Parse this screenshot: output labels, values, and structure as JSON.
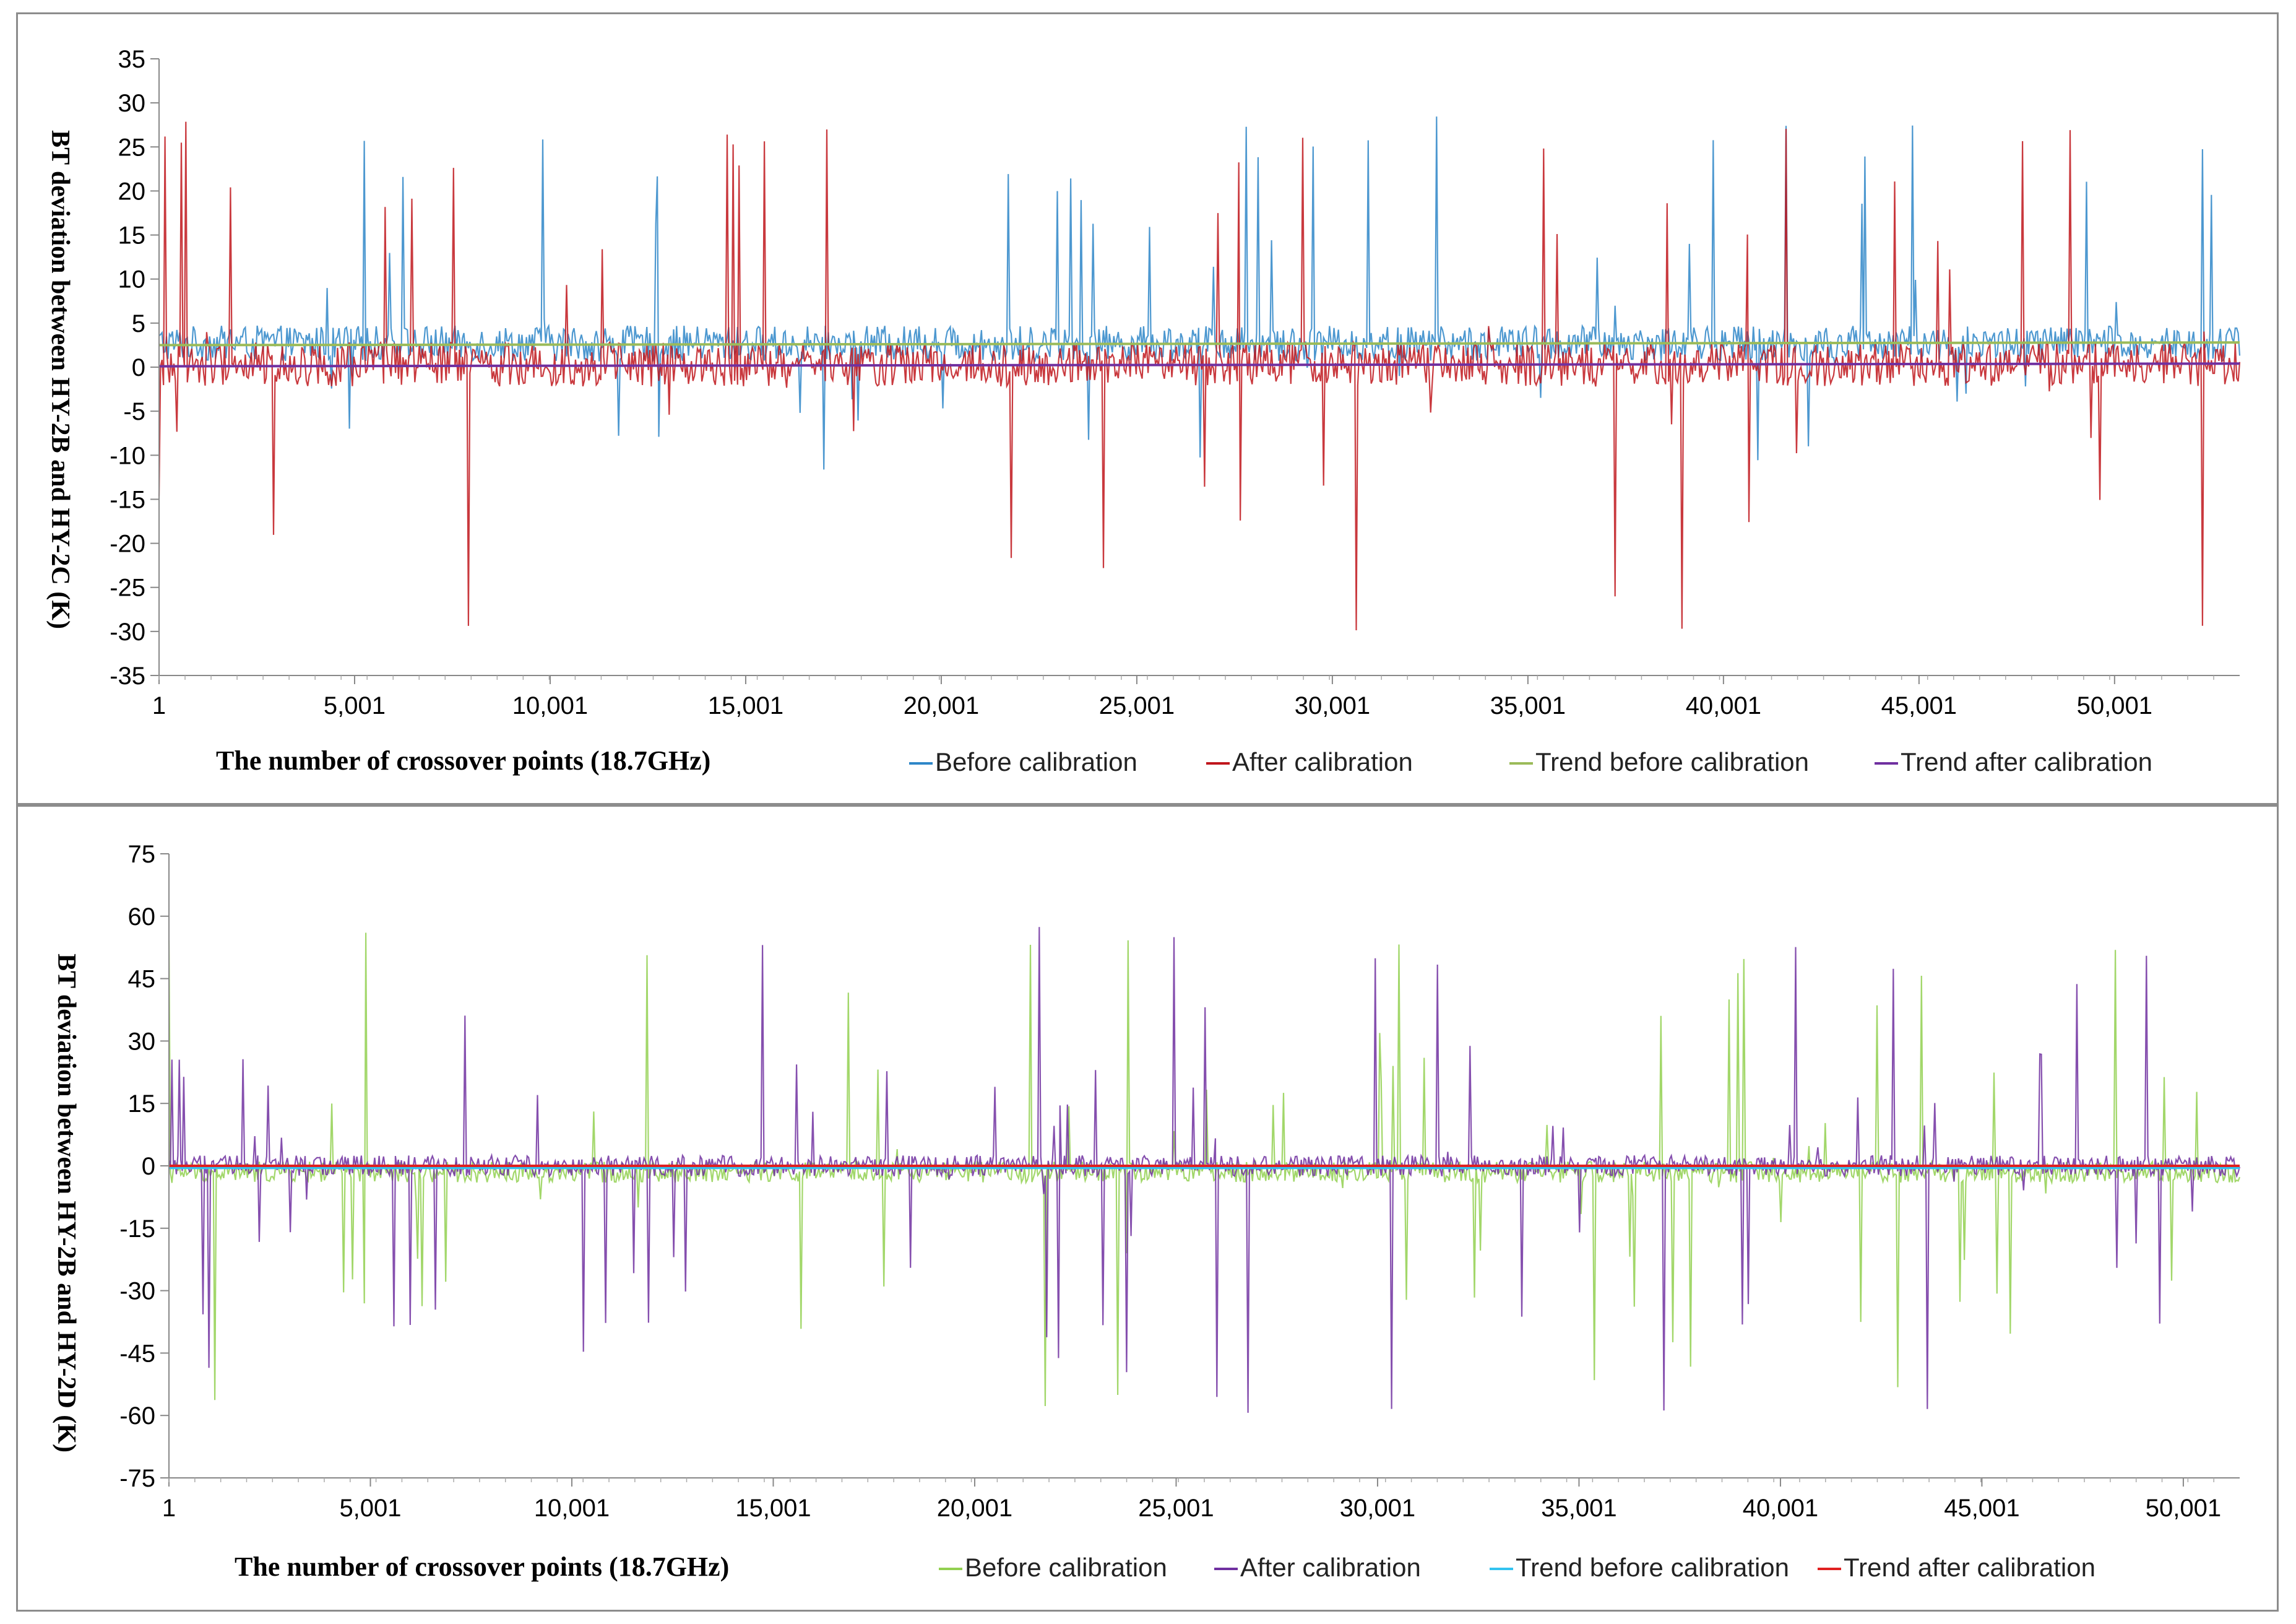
{
  "chart_data": [
    {
      "type": "line",
      "title": "",
      "xlabel": "The  number  of  crossover  points  (18.7GHz)",
      "ylabel": "BT  deviation  between  HY-2B  and  HY-2C  (K)",
      "ylim": [
        -35,
        35
      ],
      "yticks": [
        35,
        30,
        25,
        20,
        15,
        10,
        5,
        0,
        -5,
        -10,
        -15,
        -20,
        -25,
        -30,
        -35
      ],
      "xlim": [
        1,
        53200
      ],
      "xticks": [
        1,
        5001,
        10001,
        15001,
        20001,
        25001,
        30001,
        35001,
        40001,
        45001,
        50001
      ],
      "xtick_labels": [
        "1",
        "5,001",
        "10,001",
        "15,001",
        "20,001",
        "25,001",
        "30,001",
        "35,001",
        "40,001",
        "45,001",
        "50,001"
      ],
      "grid": false,
      "legend_position": "bottom-right",
      "series": [
        {
          "name": "Before calibration",
          "color": "#2e86c8",
          "baseline": 2.7,
          "noise_band": 2.0,
          "spike_range": [
            -12,
            30
          ]
        },
        {
          "name": "After calibration",
          "color": "#c0161c",
          "baseline": 0.3,
          "noise_band": 2.5,
          "spike_range": [
            -30,
            28
          ]
        },
        {
          "name": "Trend before calibration",
          "color": "#9bbb59",
          "y": [
            2.5,
            2.8
          ]
        },
        {
          "name": "Trend after calibration",
          "color": "#7030a0",
          "y": [
            0.1,
            0.4
          ]
        }
      ]
    },
    {
      "type": "line",
      "title": "",
      "xlabel": "The  number  of  crossover  points  (18.7GHz)",
      "ylabel": "BT  deviation  between  HY-2B  and  HY-2D  (K)",
      "ylim": [
        -75,
        75
      ],
      "yticks": [
        75,
        60,
        45,
        30,
        15,
        0,
        -15,
        -30,
        -45,
        -60,
        -75
      ],
      "xlim": [
        1,
        51400
      ],
      "xticks": [
        1,
        5001,
        10001,
        15001,
        20001,
        25001,
        30001,
        35001,
        40001,
        45001,
        50001
      ],
      "xtick_labels": [
        "1",
        "5,001",
        "10,001",
        "15,001",
        "20,001",
        "25,001",
        "30,001",
        "35,001",
        "40,001",
        "45,001",
        "50,001"
      ],
      "grid": false,
      "legend_position": "bottom-right",
      "series": [
        {
          "name": "Before calibration",
          "color": "#92d050",
          "baseline": -1.5,
          "noise_band": 2.5,
          "spike_range": [
            -58,
            58
          ]
        },
        {
          "name": "After calibration",
          "color": "#7030a0",
          "baseline": 0.0,
          "noise_band": 2.5,
          "spike_range": [
            -60,
            58
          ]
        },
        {
          "name": "Trend before calibration",
          "color": "#33c3f0",
          "y": [
            -0.5,
            -0.5
          ]
        },
        {
          "name": "Trend after calibration",
          "color": "#e02020",
          "y": [
            0.0,
            0.0
          ]
        }
      ]
    }
  ]
}
